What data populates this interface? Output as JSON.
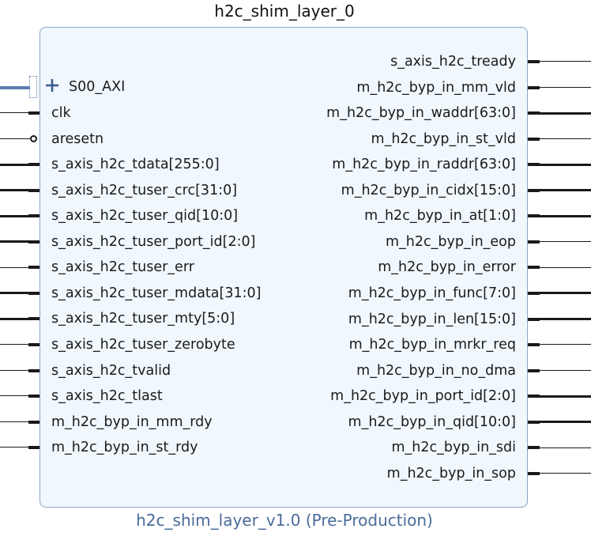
{
  "block": {
    "title": "h2c_shim_layer_0",
    "subtitle": "h2c_shim_layer_v1.0 (Pre-Production)"
  },
  "interface": {
    "label": "S00_AXI",
    "icon": "plus-icon"
  },
  "left_ports": [
    {
      "label": "clk",
      "bus": false
    },
    {
      "label": "aresetn",
      "bus": false,
      "inverted": true
    },
    {
      "label": "s_axis_h2c_tdata[255:0]",
      "bus": true
    },
    {
      "label": "s_axis_h2c_tuser_crc[31:0]",
      "bus": true
    },
    {
      "label": "s_axis_h2c_tuser_qid[10:0]",
      "bus": true
    },
    {
      "label": "s_axis_h2c_tuser_port_id[2:0]",
      "bus": true
    },
    {
      "label": "s_axis_h2c_tuser_err",
      "bus": false
    },
    {
      "label": "s_axis_h2c_tuser_mdata[31:0]",
      "bus": true
    },
    {
      "label": "s_axis_h2c_tuser_mty[5:0]",
      "bus": true
    },
    {
      "label": "s_axis_h2c_tuser_zerobyte",
      "bus": false
    },
    {
      "label": "s_axis_h2c_tvalid",
      "bus": false
    },
    {
      "label": "s_axis_h2c_tlast",
      "bus": false
    },
    {
      "label": "m_h2c_byp_in_mm_rdy",
      "bus": false
    },
    {
      "label": "m_h2c_byp_in_st_rdy",
      "bus": false
    }
  ],
  "right_ports": [
    {
      "label": "s_axis_h2c_tready",
      "bus": false
    },
    {
      "label": "m_h2c_byp_in_mm_vld",
      "bus": false
    },
    {
      "label": "m_h2c_byp_in_waddr[63:0]",
      "bus": true
    },
    {
      "label": "m_h2c_byp_in_st_vld",
      "bus": false
    },
    {
      "label": "m_h2c_byp_in_raddr[63:0]",
      "bus": true
    },
    {
      "label": "m_h2c_byp_in_cidx[15:0]",
      "bus": true
    },
    {
      "label": "m_h2c_byp_in_at[1:0]",
      "bus": true
    },
    {
      "label": "m_h2c_byp_in_eop",
      "bus": false
    },
    {
      "label": "m_h2c_byp_in_error",
      "bus": false
    },
    {
      "label": "m_h2c_byp_in_func[7:0]",
      "bus": true
    },
    {
      "label": "m_h2c_byp_in_len[15:0]",
      "bus": true
    },
    {
      "label": "m_h2c_byp_in_mrkr_req",
      "bus": false
    },
    {
      "label": "m_h2c_byp_in_no_dma",
      "bus": false
    },
    {
      "label": "m_h2c_byp_in_port_id[2:0]",
      "bus": true
    },
    {
      "label": "m_h2c_byp_in_qid[10:0]",
      "bus": true
    },
    {
      "label": "m_h2c_byp_in_sdi",
      "bus": false
    },
    {
      "label": "m_h2c_byp_in_sop",
      "bus": false
    }
  ],
  "colors": {
    "block_fill": "#f0f7fd",
    "block_border": "#8aa6c2",
    "interface_color": "#5a7bb0",
    "subtitle_color": "#4a6b9a",
    "pin_color": "#1a1a1a"
  }
}
